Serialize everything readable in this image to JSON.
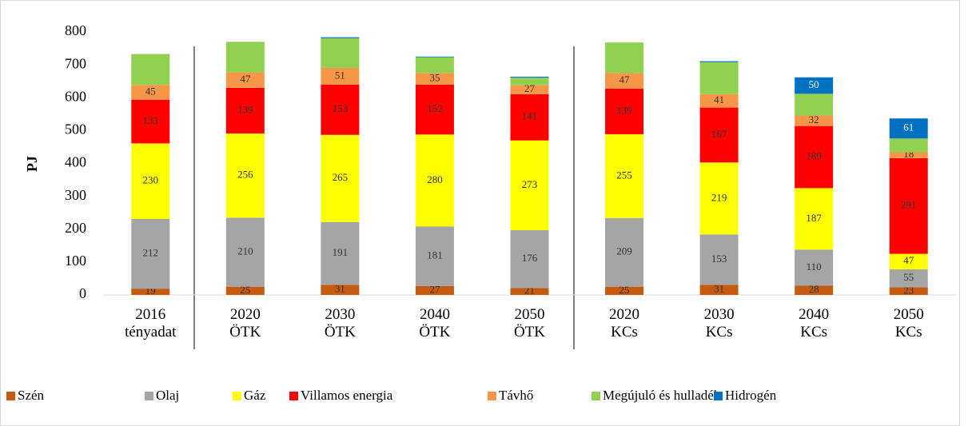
{
  "chart_data": {
    "type": "stacked_bar",
    "y_label": "PJ",
    "categories": [
      "2016 tényadat",
      "2020 ÖTK",
      "2030 ÖTK",
      "2040 ÖTK",
      "2050 ÖTK",
      "2020 KCs",
      "2030 KCs",
      "2040 KCs",
      "2050 KCs"
    ],
    "ylim": [
      0,
      800
    ],
    "yticks": [
      0,
      100,
      200,
      300,
      400,
      500,
      600,
      700,
      800
    ],
    "legend": "bottom",
    "series": [
      {
        "name": "Szén",
        "color": "#c55a11",
        "values": [
          19,
          25,
          31,
          27,
          21,
          25,
          31,
          28,
          23
        ],
        "value_labels": [
          "19",
          "25",
          "31",
          "27",
          "21",
          "25",
          "31",
          "28",
          "23"
        ]
      },
      {
        "name": "Olaj",
        "color": "#a5a5a5",
        "values": [
          212,
          210,
          191,
          181,
          176,
          209,
          153,
          110,
          55
        ],
        "value_labels": [
          "212",
          "210",
          "191",
          "181",
          "176",
          "209",
          "153",
          "110",
          "55"
        ]
      },
      {
        "name": "Gáz",
        "color": "#ffff00",
        "values": [
          230,
          256,
          265,
          280,
          273,
          255,
          219,
          187,
          47
        ],
        "value_labels": [
          "230",
          "256",
          "265",
          "280",
          "273",
          "255",
          "219",
          "187",
          "47"
        ]
      },
      {
        "name": "Villamos energia",
        "color": "#ff0000",
        "values": [
          133,
          139,
          153,
          152,
          141,
          139,
          167,
          189,
          291
        ],
        "value_labels": [
          "133",
          "139",
          "153",
          "152",
          "141",
          "139",
          "167",
          "189",
          "291"
        ]
      },
      {
        "name": "Távhő",
        "color": "#f79646",
        "values": [
          45,
          47,
          51,
          35,
          27,
          47,
          41,
          32,
          18
        ],
        "value_labels": [
          "45",
          "47",
          "51",
          "35",
          "27",
          "47",
          "41",
          "32",
          "18"
        ]
      },
      {
        "name": "Megújuló és hulladék",
        "color": "#92d050",
        "values": [
          94,
          93,
          90,
          48,
          23,
          93,
          97,
          66,
          42
        ]
      },
      {
        "name": "Hidrogén",
        "color": "#0070c0",
        "values": [
          0,
          0,
          3,
          2,
          3,
          0,
          3,
          50,
          61
        ],
        "value_labels": [
          null,
          null,
          null,
          null,
          null,
          null,
          null,
          "50",
          "61"
        ]
      }
    ]
  }
}
